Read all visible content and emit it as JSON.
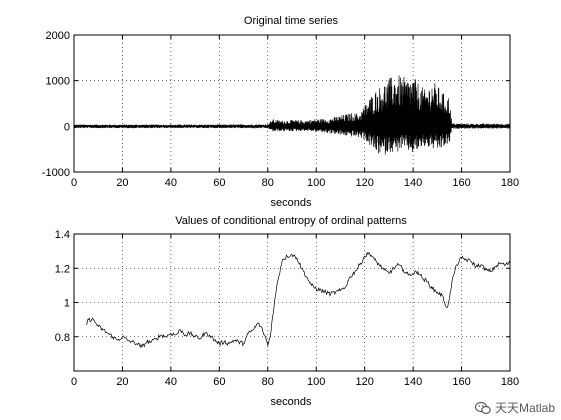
{
  "chart_data": [
    {
      "type": "line",
      "title": "Original time series",
      "xlabel": "seconds",
      "ylabel": "",
      "xlim": [
        0,
        180
      ],
      "ylim": [
        -1000,
        2000
      ],
      "xticks": [
        0,
        20,
        40,
        60,
        80,
        100,
        120,
        140,
        160,
        180
      ],
      "yticks": [
        -1000,
        0,
        1000,
        2000
      ],
      "grid": true,
      "series": [
        {
          "envelope_x": [
            0,
            20,
            40,
            60,
            80,
            82,
            85,
            90,
            95,
            100,
            105,
            110,
            115,
            118,
            120,
            123,
            125,
            128,
            130,
            133,
            135,
            138,
            140,
            143,
            145,
            148,
            150,
            153,
            155,
            156,
            160,
            180
          ],
          "envelope_hi": [
            40,
            40,
            40,
            40,
            45,
            160,
            130,
            140,
            130,
            160,
            170,
            240,
            300,
            280,
            480,
            700,
            820,
            950,
            1050,
            1150,
            1100,
            1050,
            1100,
            900,
            800,
            1000,
            900,
            700,
            650,
            70,
            60,
            60
          ],
          "envelope_lo": [
            -40,
            -40,
            -40,
            -40,
            -45,
            -120,
            -110,
            -110,
            -100,
            -120,
            -150,
            -200,
            -230,
            -250,
            -300,
            -480,
            -600,
            -650,
            -550,
            -600,
            -500,
            -550,
            -600,
            -500,
            -450,
            -500,
            -550,
            -450,
            -400,
            -60,
            -50,
            -50
          ]
        }
      ]
    },
    {
      "type": "line",
      "title": "Values of conditional entropy of ordinal patterns",
      "xlabel": "seconds",
      "ylabel": "",
      "xlim": [
        0,
        180
      ],
      "ylim": [
        0.6,
        1.4
      ],
      "xticks": [
        0,
        20,
        40,
        60,
        80,
        100,
        120,
        140,
        160,
        180
      ],
      "yticks": [
        0.8,
        1,
        1.2,
        1.4
      ],
      "grid": true,
      "series": [
        {
          "x": [
            5,
            6,
            8,
            10,
            12,
            14,
            16,
            18,
            20,
            22,
            24,
            26,
            28,
            30,
            32,
            34,
            36,
            38,
            40,
            42,
            44,
            46,
            48,
            50,
            52,
            54,
            56,
            58,
            60,
            62,
            64,
            66,
            68,
            70,
            72,
            74,
            76,
            77,
            78,
            79,
            80,
            81,
            82,
            84,
            86,
            88,
            90,
            92,
            94,
            96,
            98,
            100,
            102,
            104,
            106,
            108,
            110,
            112,
            114,
            116,
            118,
            120,
            122,
            124,
            126,
            128,
            130,
            132,
            134,
            136,
            138,
            140,
            142,
            144,
            146,
            148,
            150,
            152,
            153,
            154,
            155,
            156,
            158,
            160,
            162,
            164,
            166,
            168,
            170,
            172,
            174,
            176,
            178,
            180
          ],
          "y": [
            0.87,
            0.9,
            0.9,
            0.86,
            0.84,
            0.82,
            0.8,
            0.78,
            0.8,
            0.78,
            0.77,
            0.76,
            0.74,
            0.77,
            0.77,
            0.79,
            0.81,
            0.8,
            0.82,
            0.81,
            0.84,
            0.81,
            0.82,
            0.8,
            0.79,
            0.82,
            0.81,
            0.78,
            0.76,
            0.77,
            0.76,
            0.78,
            0.77,
            0.76,
            0.82,
            0.84,
            0.88,
            0.86,
            0.83,
            0.8,
            0.75,
            0.8,
            0.92,
            1.12,
            1.25,
            1.27,
            1.28,
            1.26,
            1.2,
            1.15,
            1.1,
            1.08,
            1.07,
            1.06,
            1.05,
            1.06,
            1.07,
            1.09,
            1.15,
            1.18,
            1.22,
            1.27,
            1.29,
            1.25,
            1.22,
            1.19,
            1.17,
            1.2,
            1.22,
            1.19,
            1.16,
            1.17,
            1.18,
            1.14,
            1.12,
            1.08,
            1.06,
            1.04,
            1.0,
            0.97,
            1.02,
            1.12,
            1.22,
            1.26,
            1.25,
            1.24,
            1.21,
            1.22,
            1.19,
            1.18,
            1.21,
            1.23,
            1.22,
            1.23
          ]
        }
      ]
    }
  ],
  "watermark": {
    "text": "天天Matlab"
  }
}
